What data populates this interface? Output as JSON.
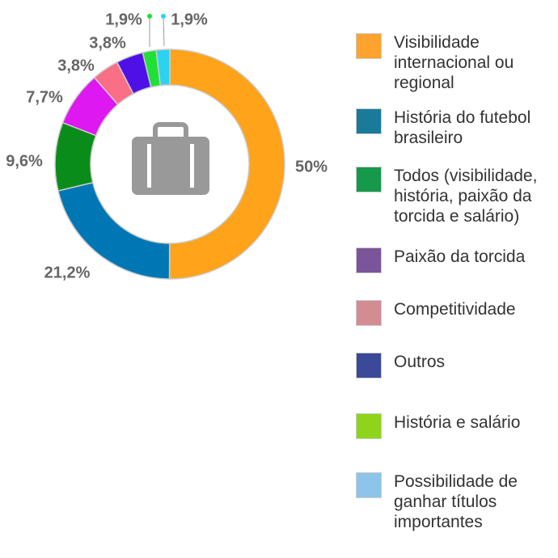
{
  "chart_data": {
    "type": "pie",
    "variant": "donut",
    "center_icon": "briefcase-icon",
    "slices": [
      {
        "name": "Visibilidade internacional ou regional",
        "value": 50,
        "label": "50%",
        "color": "#ffa31a"
      },
      {
        "name": "História do futebol brasileiro",
        "value": 21.2,
        "label": "21,2%",
        "color": "#0077b5"
      },
      {
        "name": "Todos (visibilidade, história, paixão da torcida e salário)",
        "value": 9.6,
        "label": "9,6%",
        "color": "#0a8c1a"
      },
      {
        "name": "Paixão da torcida",
        "value": 7.7,
        "label": "7,7%",
        "color": "#de18f0"
      },
      {
        "name": "Competitividade",
        "value": 3.8,
        "label": "3,8%",
        "color": "#fa6e86"
      },
      {
        "name": "Outros",
        "value": 3.8,
        "label": "3,8%",
        "color": "#4f10e8"
      },
      {
        "name": "História e salário",
        "value": 1.9,
        "label": "1,9%",
        "color": "#1fe035"
      },
      {
        "name": "Possibilidade de ganhar títulos importantes",
        "value": 1.9,
        "label": "1,9%",
        "color": "#2cd3f0"
      }
    ],
    "legend": {
      "placement": "right",
      "items": [
        {
          "label": "Visibilidade internacional ou regional",
          "color": "#ffa32e"
        },
        {
          "label": "História do futebol brasileiro",
          "color": "#1a7a9a"
        },
        {
          "label": "Todos (visibilidade, história, paixão da torcida e salário)",
          "color": "#16994a"
        },
        {
          "label": "Paixão da torcida",
          "color": "#7a5599"
        },
        {
          "label": "Competitividade",
          "color": "#d28c92"
        },
        {
          "label": "Outros",
          "color": "#3a4a99"
        },
        {
          "label": "História e salário",
          "color": "#8ed41a"
        },
        {
          "label": "Possibilidade de ganhar títulos importantes",
          "color": "#8cc4ea"
        }
      ]
    }
  }
}
